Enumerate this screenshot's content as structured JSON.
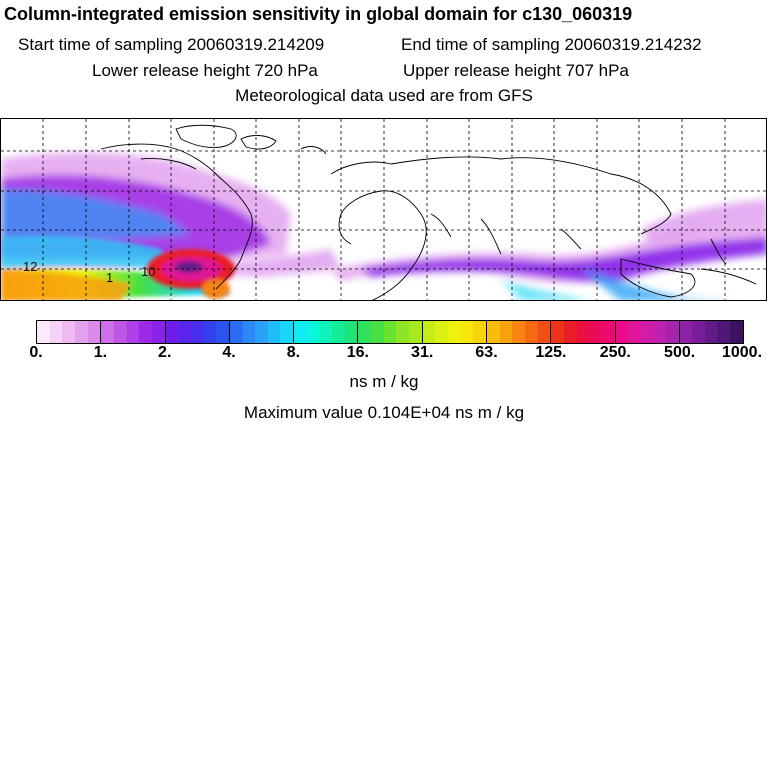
{
  "header": {
    "title": "Column-integrated emission sensitivity in global domain for c130_060319",
    "start": "Start time of sampling 20060319.214209",
    "end": "End time of sampling 20060319.214232",
    "lower": "Lower release height  720 hPa",
    "upper": "Upper release height  707 hPa",
    "met": "Meteorological data used are from GFS"
  },
  "map": {
    "projection": "lat-lon, global",
    "overlay": "coastlines",
    "grid": "dashed graticule"
  },
  "legend": {
    "ticks": [
      "0.",
      "1.",
      "2.",
      "4.",
      "8.",
      "16.",
      "31.",
      "63.",
      "125.",
      "250.",
      "500.",
      "1000."
    ],
    "colors": [
      "#fbeafb",
      "#f6d2f6",
      "#eebcf2",
      "#e3a2ee",
      "#d98aeb",
      "#cc6fe9",
      "#bf55e6",
      "#b03ee5",
      "#9d2ae6",
      "#8a22ea",
      "#6f1eea",
      "#5a24ec",
      "#4630ee",
      "#3340f0",
      "#2a55f3",
      "#2a6ef5",
      "#2a88f7",
      "#2aa2f8",
      "#22bdf8",
      "#18d6f7",
      "#10ecf2",
      "#08f6dc",
      "#0ef2bc",
      "#14ec98",
      "#1ee478",
      "#2ee05c",
      "#48e041",
      "#68e22e",
      "#8ce626",
      "#a8ea1e",
      "#c4ee18",
      "#dcf012",
      "#eef20c",
      "#f6e60a",
      "#f8d408",
      "#f8bc0a",
      "#f8a00e",
      "#f88412",
      "#f66a14",
      "#f24e18",
      "#ee341c",
      "#ea1e28",
      "#e81040",
      "#ea0a5a",
      "#ee0874",
      "#ec0c8a",
      "#e0169a",
      "#d01ea6",
      "#bc22ac",
      "#a624ac",
      "#8e22a6",
      "#781e9a",
      "#621a88",
      "#4e1676",
      "#3c125e"
    ],
    "unit": "ns m / kg",
    "max": "Maximum value  0.104E+04 ns m / kg"
  },
  "annotations": [
    "12",
    "1",
    "10"
  ]
}
